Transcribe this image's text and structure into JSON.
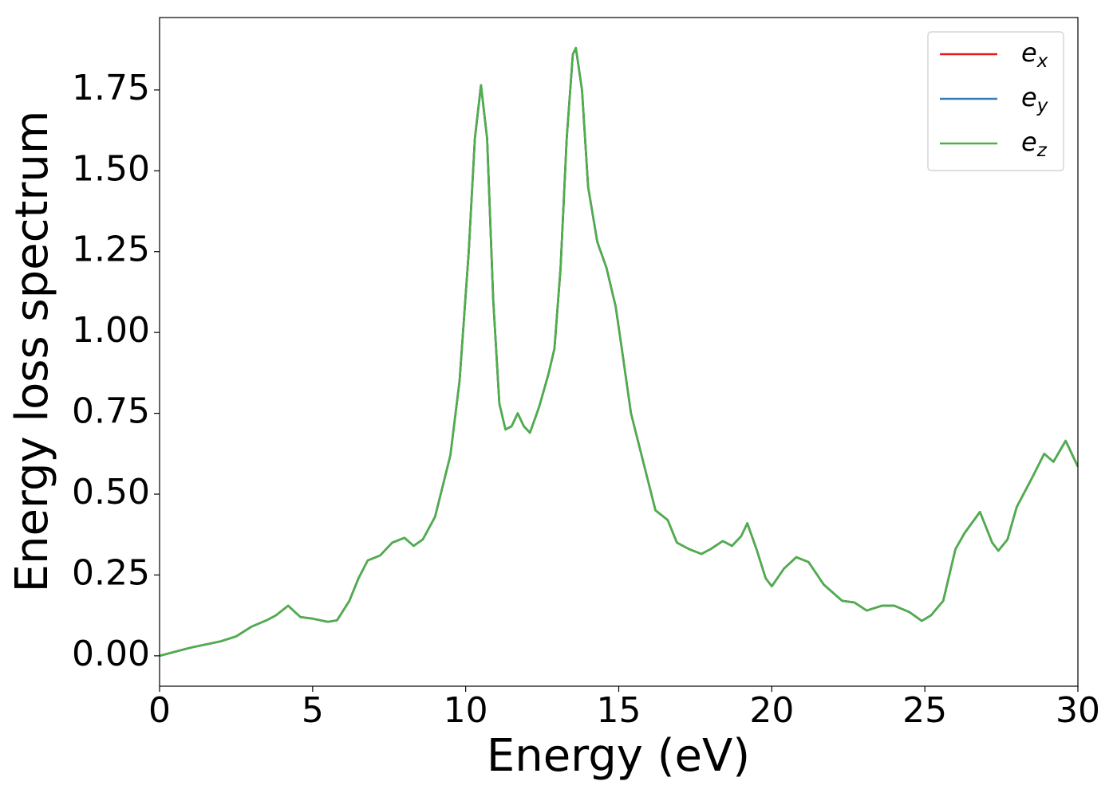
{
  "chart_data": {
    "type": "line",
    "xlabel": "Energy (eV)",
    "ylabel": "Energy loss spectrum",
    "x": [
      0,
      1,
      2,
      2.5,
      3,
      3.5,
      3.8,
      4.2,
      4.6,
      5,
      5.5,
      5.8,
      6.2,
      6.5,
      6.8,
      7.2,
      7.6,
      8,
      8.3,
      8.6,
      9,
      9.5,
      9.8,
      10.1,
      10.3,
      10.5,
      10.7,
      10.9,
      11.1,
      11.3,
      11.5,
      11.7,
      11.9,
      12.1,
      12.4,
      12.7,
      12.9,
      13.1,
      13.3,
      13.5,
      13.6,
      13.8,
      14.0,
      14.3,
      14.6,
      14.9,
      15.1,
      15.4,
      15.8,
      16.2,
      16.6,
      16.9,
      17.3,
      17.7,
      18.0,
      18.4,
      18.7,
      19.0,
      19.2,
      19.5,
      19.8,
      20.0,
      20.4,
      20.8,
      21.2,
      21.7,
      22.3,
      22.7,
      23.1,
      23.6,
      24.0,
      24.5,
      24.9,
      25.2,
      25.6,
      26.0,
      26.3,
      26.8,
      27.2,
      27.4,
      27.7,
      28.0,
      28.5,
      28.9,
      29.2,
      29.6,
      30.0
    ],
    "series": [
      {
        "name": "e_x",
        "color": "#e41a1c",
        "values": [
          0,
          0.025,
          0.045,
          0.06,
          0.09,
          0.11,
          0.125,
          0.155,
          0.12,
          0.115,
          0.105,
          0.11,
          0.17,
          0.24,
          0.295,
          0.31,
          0.35,
          0.365,
          0.34,
          0.36,
          0.43,
          0.62,
          0.85,
          1.25,
          1.6,
          1.765,
          1.6,
          1.1,
          0.78,
          0.7,
          0.71,
          0.75,
          0.71,
          0.69,
          0.77,
          0.87,
          0.95,
          1.2,
          1.6,
          1.86,
          1.88,
          1.75,
          1.45,
          1.28,
          1.2,
          1.08,
          0.95,
          0.75,
          0.6,
          0.45,
          0.42,
          0.35,
          0.33,
          0.315,
          0.33,
          0.355,
          0.34,
          0.37,
          0.41,
          0.33,
          0.24,
          0.215,
          0.27,
          0.305,
          0.29,
          0.22,
          0.17,
          0.165,
          0.14,
          0.155,
          0.155,
          0.135,
          0.108,
          0.125,
          0.17,
          0.33,
          0.38,
          0.445,
          0.35,
          0.325,
          0.36,
          0.46,
          0.55,
          0.625,
          0.6,
          0.665,
          0.585
        ]
      },
      {
        "name": "e_y",
        "color": "#377eb8",
        "values": [
          0,
          0.025,
          0.045,
          0.06,
          0.09,
          0.11,
          0.125,
          0.155,
          0.12,
          0.115,
          0.105,
          0.11,
          0.17,
          0.24,
          0.295,
          0.31,
          0.35,
          0.365,
          0.34,
          0.36,
          0.43,
          0.62,
          0.85,
          1.25,
          1.6,
          1.765,
          1.6,
          1.1,
          0.78,
          0.7,
          0.71,
          0.75,
          0.71,
          0.69,
          0.77,
          0.87,
          0.95,
          1.2,
          1.6,
          1.86,
          1.88,
          1.75,
          1.45,
          1.28,
          1.2,
          1.08,
          0.95,
          0.75,
          0.6,
          0.45,
          0.42,
          0.35,
          0.33,
          0.315,
          0.33,
          0.355,
          0.34,
          0.37,
          0.41,
          0.33,
          0.24,
          0.215,
          0.27,
          0.305,
          0.29,
          0.22,
          0.17,
          0.165,
          0.14,
          0.155,
          0.155,
          0.135,
          0.108,
          0.125,
          0.17,
          0.33,
          0.38,
          0.445,
          0.35,
          0.325,
          0.36,
          0.46,
          0.55,
          0.625,
          0.6,
          0.665,
          0.585
        ]
      },
      {
        "name": "e_z",
        "color": "#4daf4a",
        "values": [
          0,
          0.025,
          0.045,
          0.06,
          0.09,
          0.11,
          0.125,
          0.155,
          0.12,
          0.115,
          0.105,
          0.11,
          0.17,
          0.24,
          0.295,
          0.31,
          0.35,
          0.365,
          0.34,
          0.36,
          0.43,
          0.62,
          0.85,
          1.25,
          1.6,
          1.765,
          1.6,
          1.1,
          0.78,
          0.7,
          0.71,
          0.75,
          0.71,
          0.69,
          0.77,
          0.87,
          0.95,
          1.2,
          1.6,
          1.86,
          1.88,
          1.75,
          1.45,
          1.28,
          1.2,
          1.08,
          0.95,
          0.75,
          0.6,
          0.45,
          0.42,
          0.35,
          0.33,
          0.315,
          0.33,
          0.355,
          0.34,
          0.37,
          0.41,
          0.33,
          0.24,
          0.215,
          0.27,
          0.305,
          0.29,
          0.22,
          0.17,
          0.165,
          0.14,
          0.155,
          0.155,
          0.135,
          0.108,
          0.125,
          0.17,
          0.33,
          0.38,
          0.445,
          0.35,
          0.325,
          0.36,
          0.46,
          0.55,
          0.625,
          0.6,
          0.665,
          0.585
        ]
      }
    ],
    "xlim": [
      0,
      30
    ],
    "xticks": [
      0,
      5,
      10,
      15,
      20,
      25,
      30
    ],
    "ylim": [
      -0.094,
      1.974
    ],
    "yticks": [
      {
        "value": 0,
        "label": "0.00"
      },
      0.25,
      {
        "value": 0.5,
        "label": "0.50"
      },
      0.75,
      {
        "value": 1,
        "label": "1.00"
      },
      1.25,
      {
        "value": 1.5,
        "label": "1.50"
      },
      1.75
    ],
    "grid": false,
    "legend": "upper right"
  }
}
